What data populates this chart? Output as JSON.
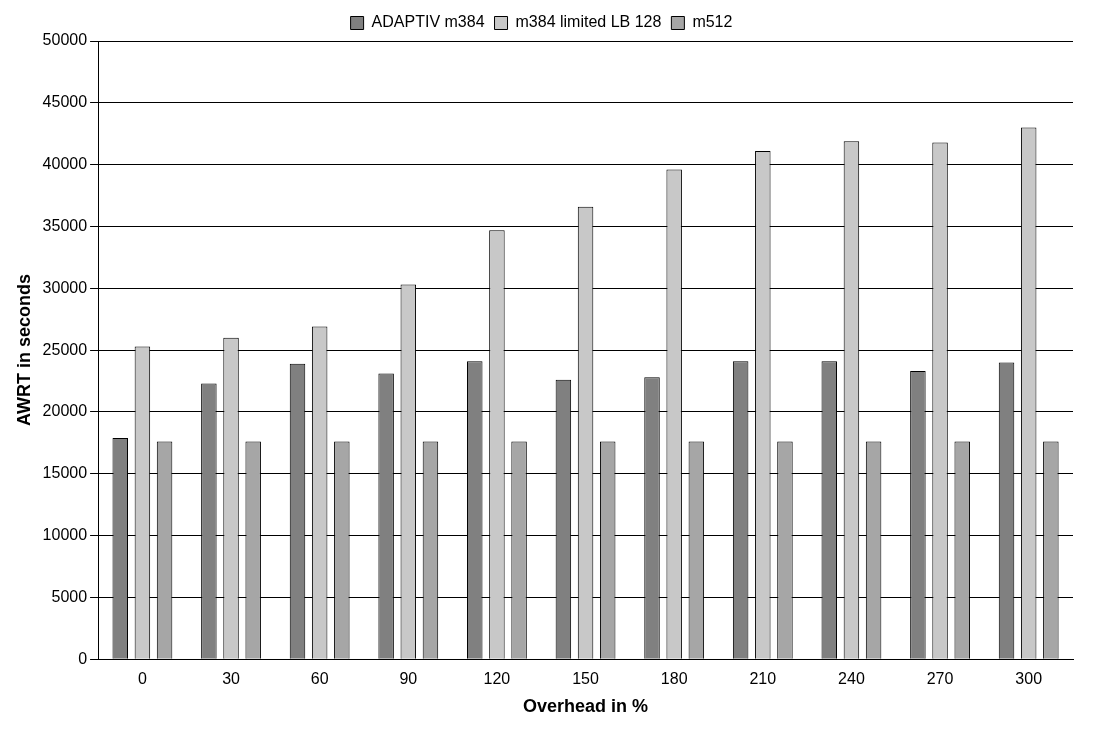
{
  "chart_data": {
    "type": "bar",
    "xlabel": "Overhead in %",
    "ylabel": "AWRT in seconds",
    "categories": [
      "0",
      "30",
      "60",
      "90",
      "120",
      "150",
      "180",
      "210",
      "240",
      "270",
      "300"
    ],
    "series": [
      {
        "name": "ADAPTIV m384",
        "color": "#808080",
        "values": [
          17900,
          22300,
          23900,
          23100,
          24100,
          22600,
          22800,
          24100,
          24100,
          23300,
          24000
        ]
      },
      {
        "name": "m384 limited LB 128",
        "color": "#c8c8c8",
        "values": [
          25300,
          26000,
          26900,
          30300,
          34700,
          36600,
          39600,
          41100,
          41900,
          41800,
          43000
        ]
      },
      {
        "name": "m512",
        "color": "#a6a6a6",
        "values": [
          17600,
          17600,
          17600,
          17600,
          17600,
          17600,
          17600,
          17600,
          17600,
          17600,
          17600
        ]
      }
    ],
    "ylim": [
      0,
      50000
    ],
    "yticks": [
      0,
      5000,
      10000,
      15000,
      20000,
      25000,
      30000,
      35000,
      40000,
      45000,
      50000
    ],
    "grid": "y",
    "legend": "top"
  }
}
